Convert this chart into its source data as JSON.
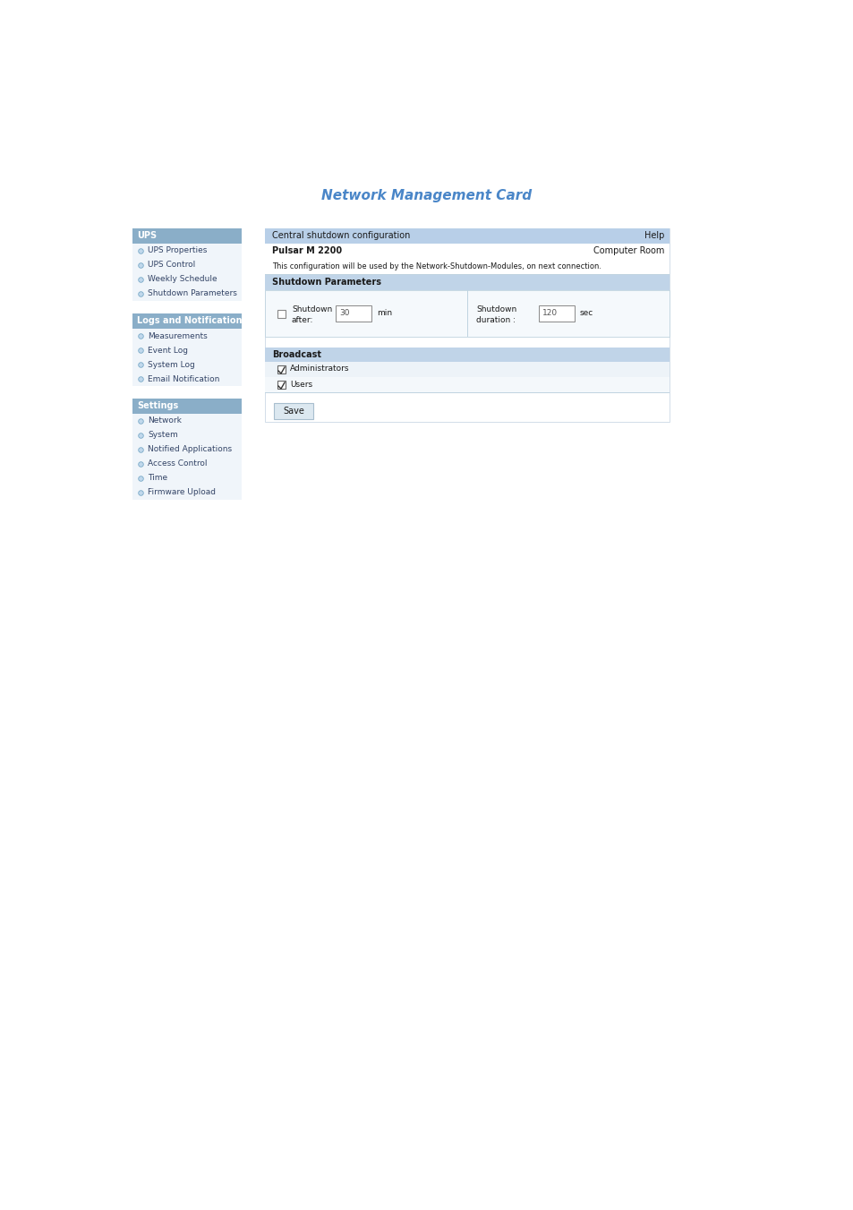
{
  "title": "Network Management Card",
  "title_color": "#4a86c8",
  "title_fontsize": 11,
  "page_bg": "#ffffff",
  "sidebar_header_bg": "#8aaec8",
  "sidebar_header_color": "#ffffff",
  "sidebar_item_bg": "#f0f5fa",
  "sidebar_fontsize": 6.5,
  "sidebar_header_fontsize": 7,
  "bullet_color_face": "#c0d8ec",
  "bullet_color_edge": "#7aaac8",
  "header_bar_color": "#b8cfe8",
  "section_bar_color": "#c0d4e8",
  "param_bg": "#f5f9fc",
  "ups_items": [
    "UPS Properties",
    "UPS Control",
    "Weekly Schedule",
    "Shutdown Parameters"
  ],
  "logs_items": [
    "Measurements",
    "Event Log",
    "System Log",
    "Email Notification"
  ],
  "settings_items": [
    "Network",
    "System",
    "Notified Applications",
    "Access Control",
    "Time",
    "Firmware Upload"
  ],
  "save_button_color": "#dce8f0",
  "save_button_text": "Save",
  "save_button_border": "#a8bece"
}
